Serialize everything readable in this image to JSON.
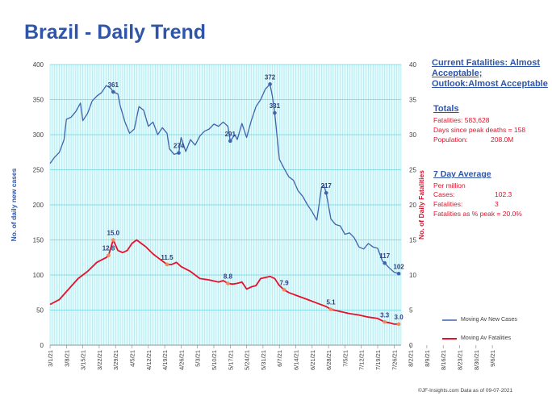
{
  "title": "Brazil - Daily Trend",
  "status_text": "Current Fatalities: Almost Acceptable; Outlook:Almost Acceptable",
  "totals": {
    "heading": "Totals",
    "fatalities": "Fatalities: 583,628",
    "days_since_peak": "Days since peak deaths = 158",
    "population_label": "Population:",
    "population_value": "208.0M"
  },
  "avg": {
    "heading": "7 Day Average",
    "per_million": "Per million",
    "cases_label": "Cases:",
    "cases_value": "102.3",
    "fatalities_label": "Fatalities:",
    "fatalities_value": "3",
    "pct_peak": "Fatalities as % peak = 20.0%"
  },
  "footer": "©JF-Insights.com  Data as of 09-07-2021",
  "colors": {
    "cases": "#3f63ad",
    "fatalities": "#e8102b",
    "plot_bg": "#e3fbfd",
    "grid": "#6fd3df",
    "marker": "#f28a5b"
  },
  "chart_data": {
    "type": "line",
    "ylabel": "No. of daily new  cases",
    "y2label": "No. of Daily Fatalities",
    "ylim": [
      0,
      400
    ],
    "y2lim": [
      0,
      40
    ],
    "yticks": [
      "0",
      "50",
      "100",
      "150",
      "200",
      "250",
      "300",
      "350",
      "400"
    ],
    "y2ticks": [
      "0",
      "5",
      "10",
      "15",
      "20",
      "25",
      "30",
      "35",
      "40"
    ],
    "xticks": [
      "3/1/21",
      "3/8/21",
      "3/15/21",
      "3/22/21",
      "3/29/21",
      "4/5/21",
      "4/12/21",
      "4/19/21",
      "4/26/21",
      "5/3/21",
      "5/10/21",
      "5/17/21",
      "5/24/21",
      "5/31/21",
      "6/7/21",
      "6/14/21",
      "6/21/21",
      "6/28/21",
      "7/5/21",
      "7/12/21",
      "7/19/21",
      "7/26/21",
      "8/2/21",
      "8/9/21",
      "8/16/21",
      "8/23/21",
      "8/30/21",
      "9/6/21"
    ],
    "series": [
      {
        "name": "Moving Av New Cases",
        "axis": "left",
        "points": [
          [
            0,
            259
          ],
          [
            2,
            268
          ],
          [
            4,
            275
          ],
          [
            6,
            293
          ],
          [
            7,
            322
          ],
          [
            9,
            325
          ],
          [
            11,
            333
          ],
          [
            13,
            345
          ],
          [
            14,
            320
          ],
          [
            16,
            330
          ],
          [
            18,
            348
          ],
          [
            20,
            355
          ],
          [
            22,
            360
          ],
          [
            24,
            370
          ],
          [
            26,
            366
          ],
          [
            27,
            361
          ],
          [
            29,
            358
          ],
          [
            30,
            341
          ],
          [
            32,
            318
          ],
          [
            34,
            302
          ],
          [
            36,
            308
          ],
          [
            38,
            340
          ],
          [
            40,
            335
          ],
          [
            42,
            312
          ],
          [
            44,
            318
          ],
          [
            46,
            300
          ],
          [
            48,
            310
          ],
          [
            50,
            302
          ],
          [
            51,
            280
          ],
          [
            53,
            272
          ],
          [
            55,
            274
          ],
          [
            56,
            296
          ],
          [
            58,
            276
          ],
          [
            60,
            293
          ],
          [
            62,
            285
          ],
          [
            64,
            298
          ],
          [
            66,
            305
          ],
          [
            68,
            308
          ],
          [
            70,
            315
          ],
          [
            72,
            312
          ],
          [
            74,
            318
          ],
          [
            76,
            312
          ],
          [
            77,
            291
          ],
          [
            79,
            300
          ],
          [
            80,
            293
          ],
          [
            82,
            316
          ],
          [
            84,
            296
          ],
          [
            86,
            320
          ],
          [
            88,
            340
          ],
          [
            90,
            350
          ],
          [
            92,
            365
          ],
          [
            94,
            372
          ],
          [
            95,
            355
          ],
          [
            96,
            331
          ],
          [
            98,
            265
          ],
          [
            100,
            252
          ],
          [
            102,
            240
          ],
          [
            104,
            235
          ],
          [
            106,
            220
          ],
          [
            108,
            212
          ],
          [
            110,
            200
          ],
          [
            112,
            190
          ],
          [
            114,
            178
          ],
          [
            116,
            225
          ],
          [
            117,
            228
          ],
          [
            118,
            217
          ],
          [
            120,
            180
          ],
          [
            122,
            172
          ],
          [
            124,
            170
          ],
          [
            126,
            158
          ],
          [
            128,
            160
          ],
          [
            130,
            153
          ],
          [
            132,
            140
          ],
          [
            134,
            137
          ],
          [
            136,
            145
          ],
          [
            138,
            140
          ],
          [
            140,
            138
          ],
          [
            142,
            120
          ],
          [
            143,
            117
          ],
          [
            145,
            110
          ],
          [
            147,
            104
          ],
          [
            149,
            102
          ]
        ]
      },
      {
        "name": "Moving Av Fatalities",
        "axis": "right",
        "points": [
          [
            0,
            5.8
          ],
          [
            4,
            6.5
          ],
          [
            8,
            8
          ],
          [
            12,
            9.5
          ],
          [
            16,
            10.5
          ],
          [
            20,
            11.8
          ],
          [
            24,
            12.5
          ],
          [
            25,
            12.8
          ],
          [
            27,
            15.0
          ],
          [
            29,
            13.5
          ],
          [
            31,
            13.2
          ],
          [
            33,
            13.5
          ],
          [
            35,
            14.5
          ],
          [
            37,
            15.0
          ],
          [
            39,
            14.5
          ],
          [
            41,
            14.0
          ],
          [
            44,
            13.0
          ],
          [
            46,
            12.5
          ],
          [
            48,
            12.0
          ],
          [
            50,
            11.5
          ],
          [
            52,
            11.5
          ],
          [
            54,
            11.8
          ],
          [
            56,
            11.2
          ],
          [
            60,
            10.5
          ],
          [
            64,
            9.5
          ],
          [
            68,
            9.3
          ],
          [
            72,
            9.0
          ],
          [
            74,
            9.2
          ],
          [
            76,
            8.8
          ],
          [
            78,
            8.7
          ],
          [
            80,
            8.8
          ],
          [
            82,
            9.0
          ],
          [
            84,
            8.0
          ],
          [
            86,
            8.3
          ],
          [
            88,
            8.5
          ],
          [
            90,
            9.5
          ],
          [
            94,
            9.8
          ],
          [
            96,
            9.5
          ],
          [
            98,
            8.5
          ],
          [
            100,
            7.9
          ],
          [
            102,
            7.5
          ],
          [
            106,
            7.0
          ],
          [
            110,
            6.5
          ],
          [
            114,
            6.0
          ],
          [
            118,
            5.5
          ],
          [
            120,
            5.1
          ],
          [
            124,
            4.8
          ],
          [
            128,
            4.5
          ],
          [
            132,
            4.3
          ],
          [
            136,
            4.0
          ],
          [
            140,
            3.8
          ],
          [
            143,
            3.3
          ],
          [
            145,
            3.2
          ],
          [
            147,
            3.0
          ],
          [
            149,
            3.0
          ]
        ]
      }
    ],
    "annotations": [
      {
        "label": "361",
        "x": 27,
        "y": 361,
        "axis": "left"
      },
      {
        "label": "274",
        "x": 55,
        "y": 274,
        "axis": "left"
      },
      {
        "label": "291",
        "x": 77,
        "y": 291,
        "axis": "left"
      },
      {
        "label": "372",
        "x": 94,
        "y": 372,
        "axis": "left"
      },
      {
        "label": "331",
        "x": 96,
        "y": 331,
        "axis": "left"
      },
      {
        "label": "217",
        "x": 118,
        "y": 217,
        "axis": "left"
      },
      {
        "label": "117",
        "x": 143,
        "y": 117,
        "axis": "left"
      },
      {
        "label": "102",
        "x": 149,
        "y": 102,
        "axis": "left"
      },
      {
        "label": "12.8",
        "x": 25,
        "y": 12.8,
        "axis": "right"
      },
      {
        "label": "15.0",
        "x": 27,
        "y": 15.0,
        "axis": "right"
      },
      {
        "label": "11.5",
        "x": 50,
        "y": 11.5,
        "axis": "right"
      },
      {
        "label": "8.8",
        "x": 76,
        "y": 8.8,
        "axis": "right"
      },
      {
        "label": "7.9",
        "x": 100,
        "y": 7.9,
        "axis": "right"
      },
      {
        "label": "5.1",
        "x": 120,
        "y": 5.1,
        "axis": "right"
      },
      {
        "label": "3.3",
        "x": 143,
        "y": 3.3,
        "axis": "right"
      },
      {
        "label": "3.0",
        "x": 149,
        "y": 3.0,
        "axis": "right"
      }
    ]
  }
}
